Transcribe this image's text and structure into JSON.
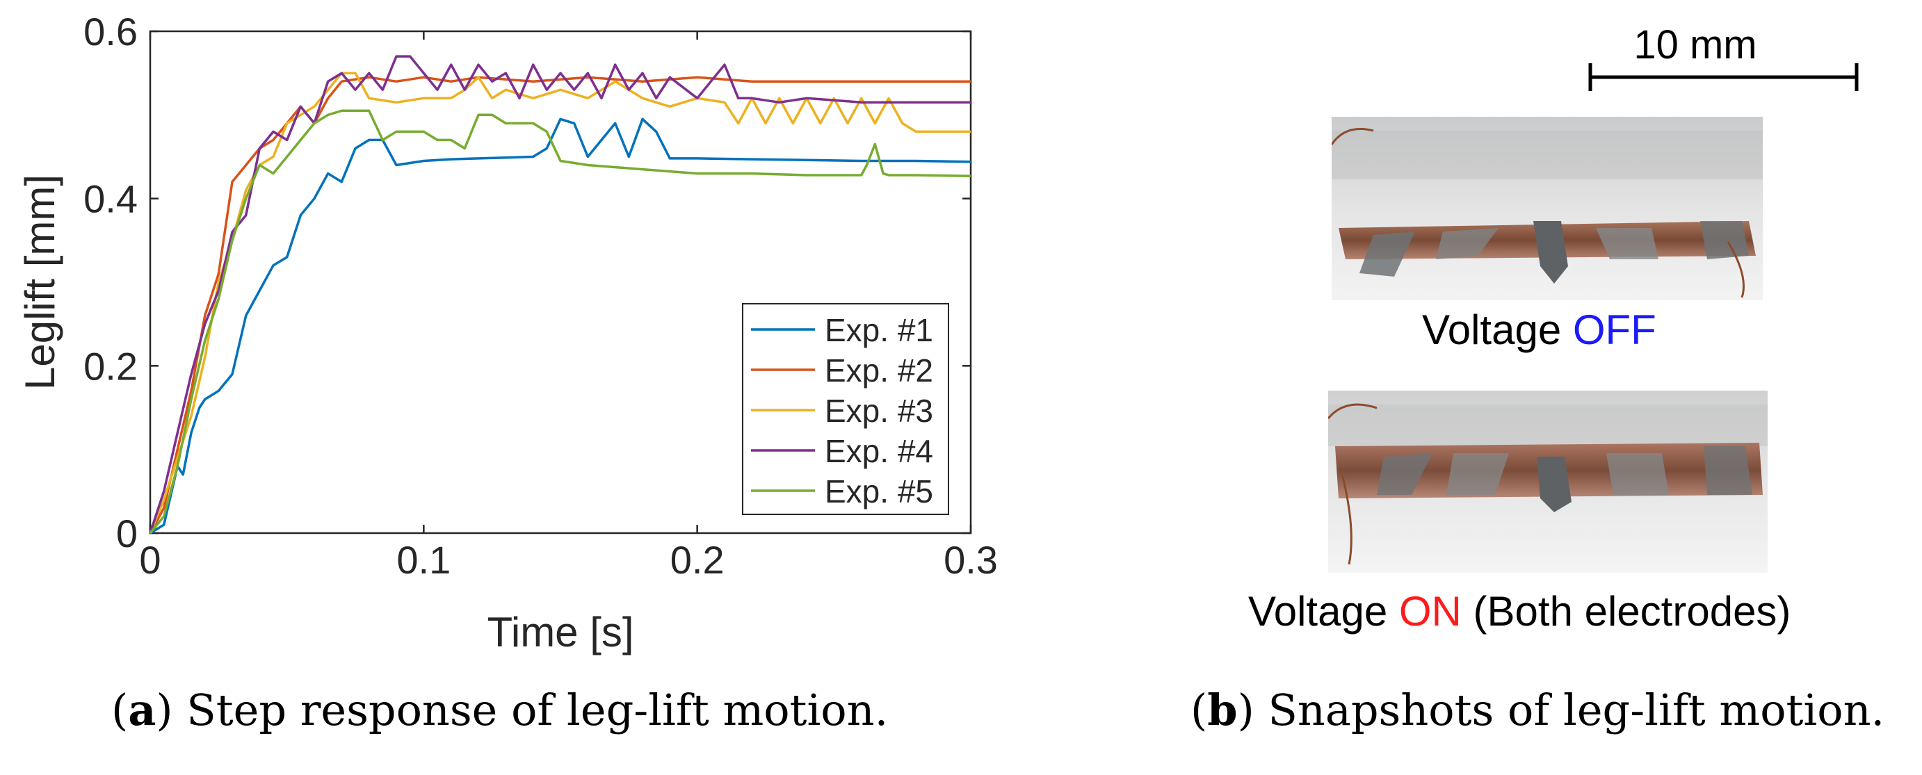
{
  "chart_data": {
    "type": "line",
    "xlabel": "Time [s]",
    "ylabel": "Leglift [mm]",
    "xlim": [
      0,
      0.3
    ],
    "ylim": [
      0,
      0.6
    ],
    "xticks": [
      0,
      0.1,
      0.2,
      0.3
    ],
    "xtick_labels": [
      "0",
      "0.1",
      "0.2",
      "0.3"
    ],
    "yticks": [
      0,
      0.2,
      0.4,
      0.6
    ],
    "ytick_labels": [
      "0",
      "0.2",
      "0.4",
      "0.6"
    ],
    "grid": false,
    "legend_position": "lower-right",
    "series": [
      {
        "name": "Exp. #1",
        "color": "#0072BD",
        "x": [
          0,
          0.005,
          0.01,
          0.012,
          0.015,
          0.018,
          0.02,
          0.025,
          0.03,
          0.035,
          0.04,
          0.045,
          0.05,
          0.055,
          0.06,
          0.065,
          0.07,
          0.075,
          0.08,
          0.085,
          0.09,
          0.1,
          0.11,
          0.12,
          0.13,
          0.14,
          0.145,
          0.15,
          0.155,
          0.16,
          0.165,
          0.17,
          0.175,
          0.18,
          0.185,
          0.19,
          0.2,
          0.22,
          0.24,
          0.26,
          0.28,
          0.3
        ],
        "y": [
          0,
          0.01,
          0.08,
          0.07,
          0.12,
          0.15,
          0.16,
          0.17,
          0.19,
          0.26,
          0.29,
          0.32,
          0.33,
          0.38,
          0.4,
          0.43,
          0.42,
          0.46,
          0.47,
          0.47,
          0.44,
          0.445,
          0.447,
          0.448,
          0.449,
          0.45,
          0.46,
          0.495,
          0.49,
          0.45,
          0.47,
          0.49,
          0.45,
          0.495,
          0.48,
          0.448,
          0.448,
          0.447,
          0.446,
          0.445,
          0.445,
          0.444
        ]
      },
      {
        "name": "Exp. #2",
        "color": "#D95319",
        "x": [
          0,
          0.005,
          0.01,
          0.015,
          0.02,
          0.025,
          0.03,
          0.035,
          0.04,
          0.045,
          0.05,
          0.055,
          0.06,
          0.065,
          0.07,
          0.08,
          0.09,
          0.1,
          0.11,
          0.12,
          0.14,
          0.16,
          0.18,
          0.2,
          0.22,
          0.24,
          0.26,
          0.28,
          0.3
        ],
        "y": [
          0,
          0.03,
          0.1,
          0.17,
          0.26,
          0.31,
          0.42,
          0.44,
          0.46,
          0.47,
          0.49,
          0.51,
          0.49,
          0.52,
          0.54,
          0.545,
          0.54,
          0.545,
          0.54,
          0.545,
          0.54,
          0.545,
          0.54,
          0.545,
          0.54,
          0.54,
          0.54,
          0.54,
          0.54
        ]
      },
      {
        "name": "Exp. #3",
        "color": "#EDB120",
        "x": [
          0,
          0.005,
          0.01,
          0.015,
          0.02,
          0.025,
          0.03,
          0.035,
          0.04,
          0.045,
          0.05,
          0.055,
          0.06,
          0.065,
          0.07,
          0.075,
          0.08,
          0.09,
          0.1,
          0.11,
          0.115,
          0.12,
          0.125,
          0.13,
          0.14,
          0.15,
          0.16,
          0.17,
          0.18,
          0.19,
          0.2,
          0.21,
          0.215,
          0.22,
          0.225,
          0.23,
          0.235,
          0.24,
          0.245,
          0.25,
          0.255,
          0.26,
          0.265,
          0.27,
          0.275,
          0.28,
          0.3
        ],
        "y": [
          0,
          0.04,
          0.09,
          0.14,
          0.21,
          0.3,
          0.35,
          0.41,
          0.44,
          0.45,
          0.49,
          0.5,
          0.51,
          0.53,
          0.55,
          0.55,
          0.52,
          0.515,
          0.52,
          0.52,
          0.53,
          0.545,
          0.52,
          0.53,
          0.52,
          0.53,
          0.52,
          0.54,
          0.52,
          0.51,
          0.52,
          0.515,
          0.49,
          0.52,
          0.49,
          0.52,
          0.49,
          0.52,
          0.49,
          0.52,
          0.49,
          0.52,
          0.49,
          0.52,
          0.49,
          0.48,
          0.48
        ]
      },
      {
        "name": "Exp. #4",
        "color": "#7E2F8E",
        "x": [
          0,
          0.005,
          0.01,
          0.015,
          0.02,
          0.025,
          0.03,
          0.035,
          0.04,
          0.045,
          0.05,
          0.055,
          0.06,
          0.065,
          0.07,
          0.075,
          0.08,
          0.085,
          0.09,
          0.095,
          0.1,
          0.105,
          0.11,
          0.115,
          0.12,
          0.125,
          0.13,
          0.135,
          0.14,
          0.145,
          0.15,
          0.155,
          0.16,
          0.165,
          0.17,
          0.175,
          0.18,
          0.185,
          0.19,
          0.2,
          0.205,
          0.21,
          0.215,
          0.22,
          0.23,
          0.24,
          0.26,
          0.28,
          0.3
        ],
        "y": [
          0,
          0.05,
          0.12,
          0.19,
          0.25,
          0.29,
          0.36,
          0.38,
          0.46,
          0.48,
          0.47,
          0.51,
          0.49,
          0.54,
          0.55,
          0.53,
          0.55,
          0.53,
          0.57,
          0.57,
          0.55,
          0.53,
          0.56,
          0.53,
          0.56,
          0.54,
          0.55,
          0.52,
          0.56,
          0.53,
          0.55,
          0.53,
          0.55,
          0.52,
          0.56,
          0.53,
          0.55,
          0.52,
          0.545,
          0.52,
          0.54,
          0.56,
          0.52,
          0.52,
          0.515,
          0.52,
          0.515,
          0.515,
          0.515
        ]
      },
      {
        "name": "Exp. #5",
        "color": "#77AC30",
        "x": [
          0,
          0.005,
          0.01,
          0.015,
          0.02,
          0.025,
          0.03,
          0.035,
          0.04,
          0.045,
          0.05,
          0.055,
          0.06,
          0.065,
          0.07,
          0.075,
          0.08,
          0.085,
          0.09,
          0.095,
          0.1,
          0.105,
          0.11,
          0.115,
          0.12,
          0.125,
          0.13,
          0.14,
          0.145,
          0.15,
          0.16,
          0.18,
          0.2,
          0.22,
          0.24,
          0.26,
          0.262,
          0.265,
          0.268,
          0.27,
          0.28,
          0.3
        ],
        "y": [
          0,
          0.02,
          0.08,
          0.16,
          0.23,
          0.28,
          0.35,
          0.4,
          0.44,
          0.43,
          0.45,
          0.47,
          0.49,
          0.5,
          0.505,
          0.505,
          0.505,
          0.47,
          0.48,
          0.48,
          0.48,
          0.47,
          0.47,
          0.46,
          0.5,
          0.5,
          0.49,
          0.49,
          0.48,
          0.445,
          0.44,
          0.435,
          0.43,
          0.43,
          0.428,
          0.428,
          0.44,
          0.465,
          0.43,
          0.428,
          0.428,
          0.427
        ]
      }
    ]
  },
  "snapshots": {
    "scale_bar_label": "10 mm",
    "off_label_prefix": "Voltage ",
    "off_state": "OFF",
    "on_label_prefix": "Voltage ",
    "on_state": "ON",
    "on_label_suffix": " (Both electrodes)"
  },
  "captions": {
    "a_tag": "(",
    "a_letter": "a",
    "a_text": ") Step response of leg-lift motion.",
    "b_tag": "(",
    "b_letter": "b",
    "b_text": ") Snapshots of leg-lift motion."
  }
}
